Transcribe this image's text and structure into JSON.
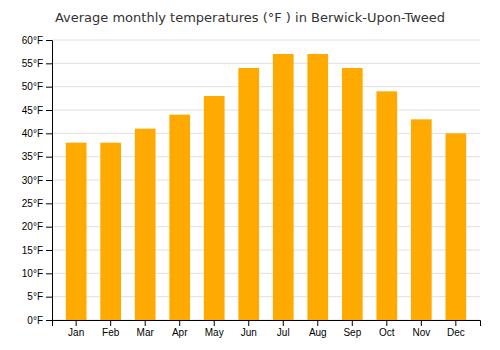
{
  "chart_data": {
    "type": "bar",
    "title": "Average monthly temperatures (°F ) in Berwick-Upon-Tweed",
    "categories": [
      "Jan",
      "Feb",
      "Mar",
      "Apr",
      "May",
      "Jun",
      "Jul",
      "Aug",
      "Sep",
      "Oct",
      "Nov",
      "Dec"
    ],
    "values": [
      38,
      38,
      41,
      44,
      48,
      54,
      57,
      57,
      54,
      49,
      43,
      40
    ],
    "color": "#FFAA00",
    "ylim": [
      0,
      60
    ],
    "yticks": [
      {
        "value": 0,
        "label": "0°F"
      },
      {
        "value": 5,
        "label": "5°F"
      },
      {
        "value": 10,
        "label": "10°F"
      },
      {
        "value": 15,
        "label": "15°F"
      },
      {
        "value": 20,
        "label": "20°F"
      },
      {
        "value": 25,
        "label": "25°F"
      },
      {
        "value": 30,
        "label": "30°F"
      },
      {
        "value": 35,
        "label": "35°F"
      },
      {
        "value": 40,
        "label": "40°F"
      },
      {
        "value": 45,
        "label": "45°F"
      },
      {
        "value": 50,
        "label": "50°F"
      },
      {
        "value": 55,
        "label": "55°F"
      },
      {
        "value": 60,
        "label": "60°F"
      }
    ],
    "grid": true
  }
}
